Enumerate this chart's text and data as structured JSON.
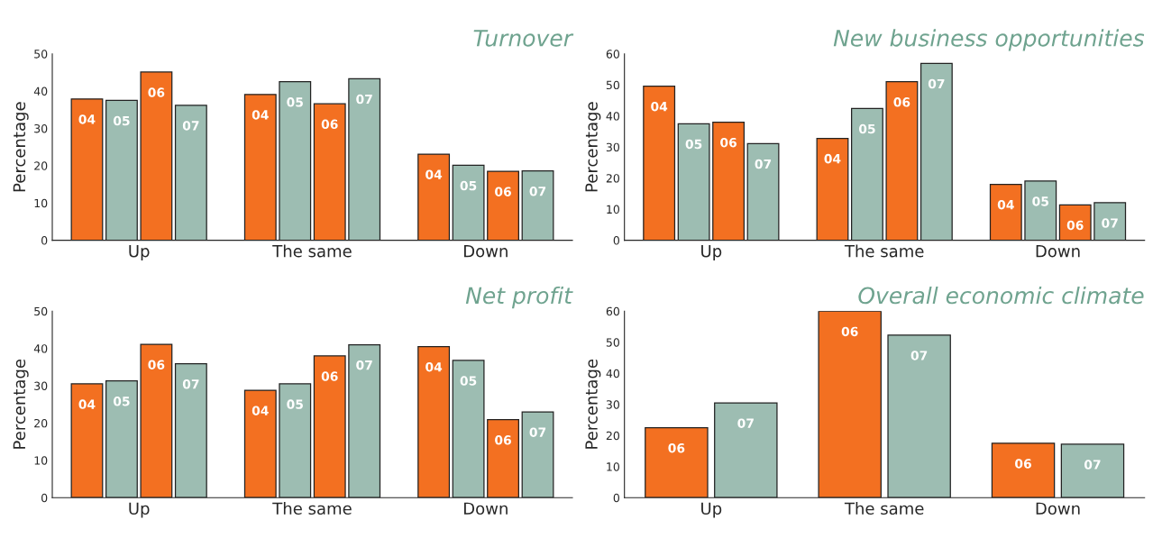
{
  "chart_data": [
    {
      "type": "bar",
      "title": "Turnover",
      "ylabel": "Percentage",
      "categories": [
        "Up",
        "The same",
        "Down"
      ],
      "ylim": [
        0,
        50
      ],
      "yticks": [
        0,
        10,
        20,
        30,
        40,
        50
      ],
      "legend": false,
      "grid": false,
      "series": [
        {
          "name": "04",
          "color": "#f37021",
          "values": [
            37.9,
            39.1,
            23.1
          ]
        },
        {
          "name": "05",
          "color": "#9dbdb2",
          "values": [
            37.5,
            42.5,
            20.1
          ]
        },
        {
          "name": "06",
          "color": "#f37021",
          "values": [
            45.1,
            36.6,
            18.5
          ]
        },
        {
          "name": "07",
          "color": "#9dbdb2",
          "values": [
            36.2,
            43.3,
            18.6
          ]
        }
      ]
    },
    {
      "type": "bar",
      "title": "New business opportunities",
      "ylabel": "Percentage",
      "categories": [
        "Up",
        "The same",
        "Down"
      ],
      "ylim": [
        0,
        60
      ],
      "yticks": [
        0,
        10,
        20,
        30,
        40,
        50,
        60
      ],
      "legend": false,
      "grid": false,
      "series": [
        {
          "name": "04",
          "color": "#f37021",
          "values": [
            49.6,
            32.8,
            18.0
          ]
        },
        {
          "name": "05",
          "color": "#9dbdb2",
          "values": [
            37.5,
            42.4,
            19.1
          ]
        },
        {
          "name": "06",
          "color": "#f37021",
          "values": [
            38.0,
            51.0,
            11.4
          ]
        },
        {
          "name": "07",
          "color": "#9dbdb2",
          "values": [
            31.1,
            56.9,
            12.1
          ]
        }
      ]
    },
    {
      "type": "bar",
      "title": "Net profit",
      "ylabel": "Percentage",
      "categories": [
        "Up",
        "The same",
        "Down"
      ],
      "ylim": [
        0,
        50
      ],
      "yticks": [
        0,
        10,
        20,
        30,
        40,
        50
      ],
      "legend": false,
      "grid": false,
      "series": [
        {
          "name": "04",
          "color": "#f37021",
          "values": [
            30.5,
            28.8,
            40.5
          ]
        },
        {
          "name": "05",
          "color": "#9dbdb2",
          "values": [
            31.3,
            30.5,
            36.8
          ]
        },
        {
          "name": "06",
          "color": "#f37021",
          "values": [
            41.1,
            38.0,
            20.9
          ]
        },
        {
          "name": "07",
          "color": "#9dbdb2",
          "values": [
            35.9,
            41.0,
            23.0
          ]
        }
      ]
    },
    {
      "type": "bar",
      "title": "Overall economic climate",
      "ylabel": "Percentage",
      "categories": [
        "Up",
        "The same",
        "Down"
      ],
      "ylim": [
        0,
        60
      ],
      "yticks": [
        0,
        10,
        20,
        30,
        40,
        50,
        60
      ],
      "legend": false,
      "grid": false,
      "series": [
        {
          "name": "06",
          "color": "#f37021",
          "values": [
            22.5,
            60.0,
            17.5
          ]
        },
        {
          "name": "07",
          "color": "#9dbdb2",
          "values": [
            30.5,
            52.3,
            17.2
          ]
        }
      ]
    }
  ]
}
